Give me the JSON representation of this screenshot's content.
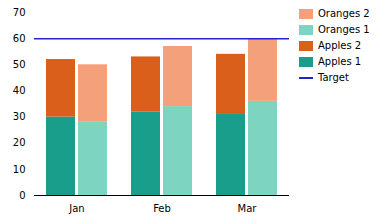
{
  "chart_data": {
    "type": "bar",
    "stacked": true,
    "categories": [
      "Jan",
      "Feb",
      "Mar"
    ],
    "groups": [
      [
        {
          "name": "Apples 1",
          "color": "#1a9e8c",
          "values": [
            30,
            32,
            31
          ]
        },
        {
          "name": "Apples 2",
          "color": "#d95f1a",
          "values": [
            22,
            21,
            23
          ]
        }
      ],
      [
        {
          "name": "Oranges 1",
          "color": "#7dd4c0",
          "values": [
            28,
            34,
            36
          ]
        },
        {
          "name": "Oranges 2",
          "color": "#f4a07a",
          "values": [
            22,
            23,
            24
          ]
        }
      ]
    ],
    "target": {
      "name": "Target",
      "color": "#2222cc",
      "value": 60
    },
    "ylim": [
      0,
      70
    ],
    "yticks": [
      0,
      10,
      20,
      30,
      40,
      50,
      60,
      70
    ],
    "grid": false,
    "legend": "upper right"
  }
}
